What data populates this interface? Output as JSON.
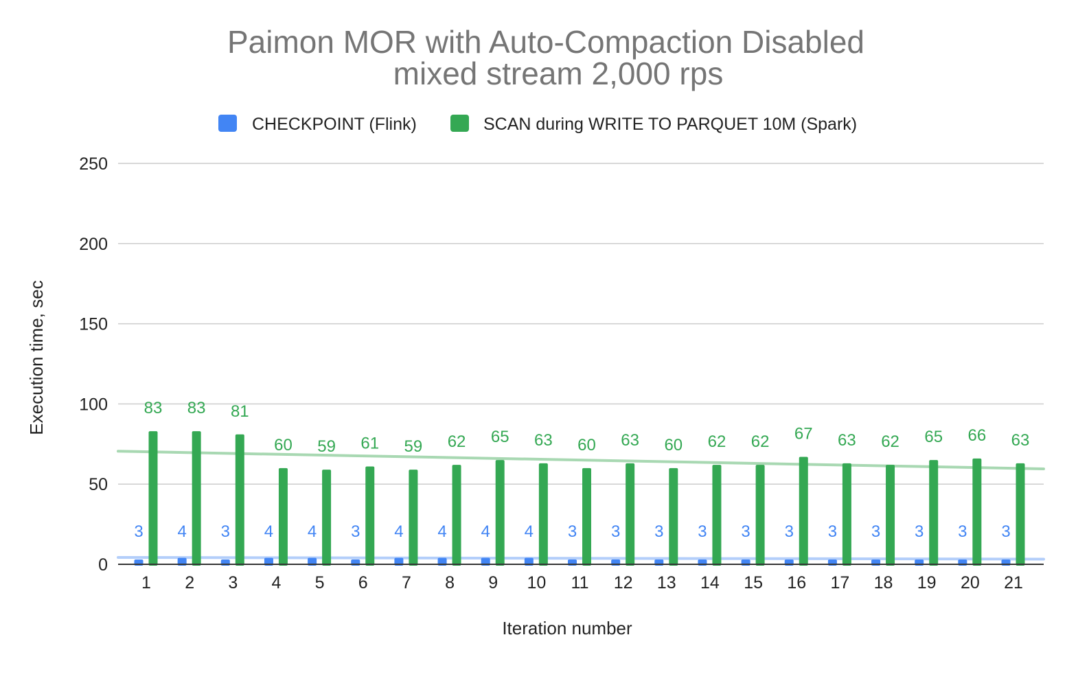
{
  "chart_data": {
    "type": "bar",
    "title": "Paimon MOR with Auto-Compaction Disabled",
    "subtitle": "mixed stream 2,000 rps",
    "xlabel": "Iteration number",
    "ylabel": "Execution time, sec",
    "ylim": [
      0,
      250
    ],
    "yticks": [
      0,
      50,
      100,
      150,
      200,
      250
    ],
    "grid": true,
    "legend_position": "top",
    "categories": [
      "1",
      "2",
      "3",
      "4",
      "5",
      "6",
      "7",
      "8",
      "9",
      "10",
      "11",
      "12",
      "13",
      "14",
      "15",
      "16",
      "17",
      "18",
      "19",
      "20",
      "21"
    ],
    "series": [
      {
        "name": "CHECKPOINT (Flink)",
        "color": "#4285f4",
        "values": [
          3,
          4,
          3,
          4,
          4,
          3,
          4,
          4,
          4,
          4,
          3,
          3,
          3,
          3,
          3,
          3,
          3,
          3,
          3,
          3,
          3
        ],
        "trendline": {
          "start": 4.3,
          "end": 3.2,
          "color": "#b3cefa"
        }
      },
      {
        "name": "SCAN during WRITE TO PARQUET 10M (Spark)",
        "color": "#34a853",
        "values": [
          83,
          83,
          81,
          60,
          59,
          61,
          59,
          62,
          65,
          63,
          60,
          63,
          60,
          62,
          62,
          67,
          63,
          62,
          65,
          66,
          63
        ],
        "trendline": {
          "start": 70.5,
          "end": 59.5,
          "color": "#a8d8b2"
        }
      }
    ]
  }
}
